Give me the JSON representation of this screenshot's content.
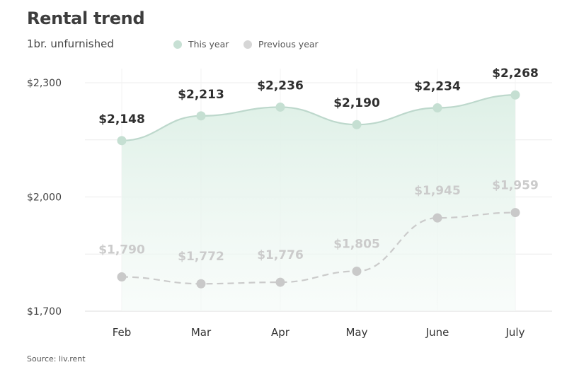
{
  "header": {
    "title": "Rental trend",
    "subtitle": "1br. unfurnished"
  },
  "legend": {
    "current_label": "This year",
    "previous_label": "Previous year"
  },
  "source": "Source: liv.rent",
  "colors": {
    "current": "#bdd8cc",
    "current_fill": "#e9f4ee",
    "previous": "#cbcbcb",
    "grid": "#ececec",
    "axis": "#dddddd"
  },
  "chart_data": {
    "type": "line",
    "title": "Rental trend",
    "subtitle": "1br. unfurnished",
    "categories": [
      "Feb",
      "Mar",
      "Apr",
      "May",
      "June",
      "July"
    ],
    "series": [
      {
        "name": "This year",
        "values": [
          2148,
          2213,
          2236,
          2190,
          2234,
          2268
        ],
        "labels": [
          "$2,148",
          "$2,213",
          "$2,236",
          "$2,190",
          "$2,234",
          "$2,268"
        ],
        "style": "solid, area filled"
      },
      {
        "name": "Previous year",
        "values": [
          1790,
          1772,
          1776,
          1805,
          1945,
          1959
        ],
        "labels": [
          "$1,790",
          "$1,772",
          "$1,776",
          "$1,805",
          "$1,945",
          "$1,959"
        ],
        "style": "dashed"
      }
    ],
    "yticks": [
      1700,
      2000,
      2300
    ],
    "ytick_labels": [
      "$1,700",
      "$2,000",
      "$2,300"
    ],
    "ylim": [
      1700,
      2300
    ],
    "xlabel": "",
    "ylabel": "",
    "grid": true,
    "legend_position": "top"
  }
}
